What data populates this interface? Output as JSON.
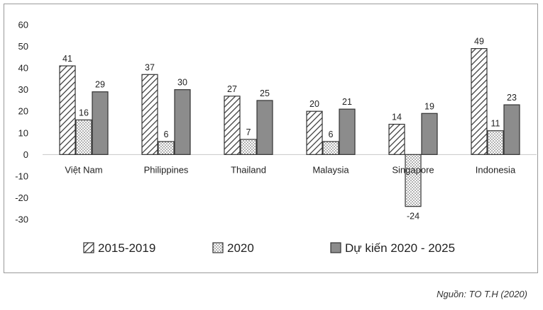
{
  "chart_data": {
    "type": "bar",
    "categories": [
      "Việt Nam",
      "Philippines",
      "Thailand",
      "Malaysia",
      "Singapore",
      "Indonesia"
    ],
    "series": [
      {
        "name": "2015-2019",
        "values": [
          41,
          37,
          27,
          20,
          14,
          49
        ],
        "pattern": "hatch"
      },
      {
        "name": "2020",
        "values": [
          16,
          6,
          7,
          6,
          -24,
          11
        ],
        "pattern": "dots"
      },
      {
        "name": "Dự kiến 2020 - 2025",
        "values": [
          29,
          30,
          25,
          21,
          19,
          23
        ],
        "pattern": "solid",
        "color": "#8c8c8c"
      }
    ],
    "ylim": [
      -30,
      60
    ],
    "yticks": [
      -30,
      -20,
      -10,
      0,
      10,
      20,
      30,
      40,
      50,
      60
    ],
    "title": "",
    "xlabel": "",
    "ylabel": "",
    "legend": "bottom",
    "grid": false
  },
  "source_note": "Nguồn: TO T.H (2020)"
}
